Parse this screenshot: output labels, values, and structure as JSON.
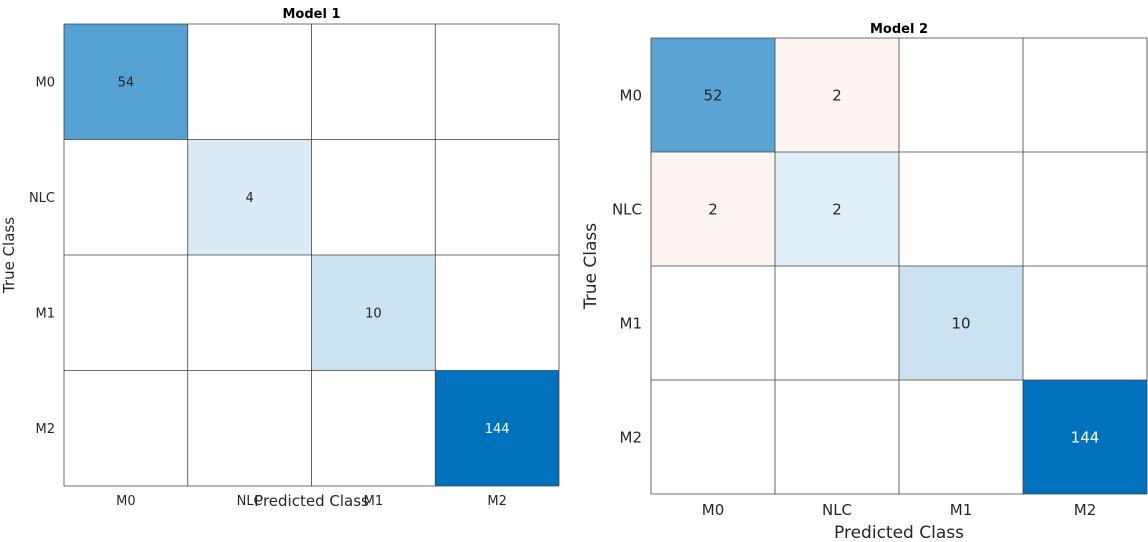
{
  "chart_data": [
    {
      "type": "heatmap",
      "title": "Model 1",
      "xlabel": "Predicted Class",
      "ylabel": "True Class",
      "categories_x": [
        "M0",
        "NLC",
        "M1",
        "M2"
      ],
      "categories_y": [
        "M0",
        "NLC",
        "M1",
        "M2"
      ],
      "values": [
        [
          54,
          0,
          0,
          0
        ],
        [
          0,
          4,
          0,
          0
        ],
        [
          0,
          0,
          10,
          0
        ],
        [
          0,
          0,
          0,
          144
        ]
      ],
      "colors": {
        "correct": "#0072BD",
        "incorrect": "#D95319",
        "grid": "#404040",
        "empty": "#ffffff"
      }
    },
    {
      "type": "heatmap",
      "title": "Model 2",
      "xlabel": "Predicted Class",
      "ylabel": "True Class",
      "categories_x": [
        "M0",
        "NLC",
        "M1",
        "M2"
      ],
      "categories_y": [
        "M0",
        "NLC",
        "M1",
        "M2"
      ],
      "values": [
        [
          52,
          2,
          0,
          0
        ],
        [
          2,
          2,
          0,
          0
        ],
        [
          0,
          0,
          10,
          0
        ],
        [
          0,
          0,
          0,
          144
        ]
      ],
      "colors": {
        "correct": "#0072BD",
        "incorrect": "#D95319",
        "grid": "#404040",
        "empty": "#ffffff"
      }
    }
  ]
}
